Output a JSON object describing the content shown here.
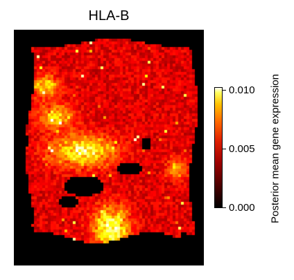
{
  "chart_data": {
    "type": "heatmap",
    "title": "HLA-B",
    "colorbar": {
      "label": "Posterior mean gene expression",
      "ticks": [
        "0.000",
        "0.005",
        "0.010"
      ],
      "tick_values": [
        0.0,
        0.005,
        0.01
      ],
      "range": [
        0.0,
        0.0105
      ],
      "colormap": "hot"
    },
    "background_color": "#000000",
    "hotspots": [
      {
        "region": "left-center band",
        "level": 0.008
      },
      {
        "region": "lower-center lobe",
        "level": 0.009
      },
      {
        "region": "upper-left",
        "level": 0.006
      },
      {
        "region": "right-middle",
        "level": 0.005
      }
    ]
  }
}
